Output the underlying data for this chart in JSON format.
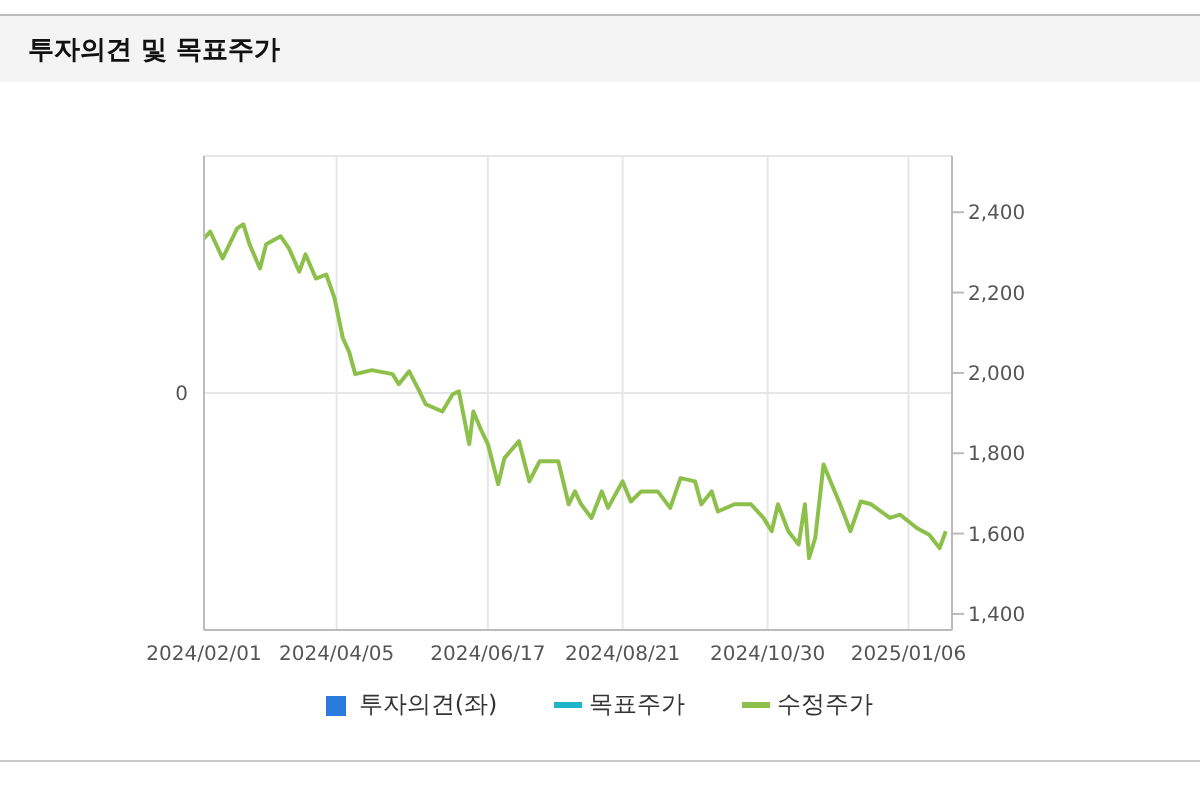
{
  "chart_data": {
    "type": "line",
    "title": "투자의견 및 목표주가",
    "xlim": [
      "2024-02-01",
      "2025-01-27"
    ],
    "xticks": [
      {
        "value": "2024-02-01",
        "label": "2024/02/01"
      },
      {
        "value": "2024-04-05",
        "label": "2024/04/05"
      },
      {
        "value": "2024-06-17",
        "label": "2024/06/17"
      },
      {
        "value": "2024-08-21",
        "label": "2024/08/21"
      },
      {
        "value": "2024-10-30",
        "label": "2024/10/30"
      },
      {
        "value": "2025-01-06",
        "label": "2025/01/06"
      }
    ],
    "annotations": [
      "0"
    ],
    "y2lim": [
      1360,
      2540
    ],
    "y2ticks": [
      {
        "value": 1400,
        "label": "1,400"
      },
      {
        "value": 1600,
        "label": "1,600"
      },
      {
        "value": 1800,
        "label": "1,800"
      },
      {
        "value": 2000,
        "label": "2,000"
      },
      {
        "value": 2200,
        "label": "2,200"
      },
      {
        "value": 2400,
        "label": "2,400"
      }
    ],
    "grid": true,
    "legend": "bottom",
    "series": [
      {
        "name": "투자의견(좌)",
        "type": "bar",
        "color": "#2b7bdc"
      },
      {
        "name": "목표주가",
        "color": "#1fb5c8",
        "axis": "y2"
      },
      {
        "name": "수정주가",
        "color": "#8dc04a",
        "axis": "y2",
        "x": [
          "2024-02-01",
          "2024-02-04",
          "2024-02-10",
          "2024-02-17",
          "2024-02-20",
          "2024-02-23",
          "2024-02-28",
          "2024-03-02",
          "2024-03-09",
          "2024-03-13",
          "2024-03-18",
          "2024-03-21",
          "2024-03-26",
          "2024-03-31",
          "2024-04-04",
          "2024-04-08",
          "2024-04-11",
          "2024-04-14",
          "2024-04-22",
          "2024-05-02",
          "2024-05-05",
          "2024-05-10",
          "2024-05-15",
          "2024-05-18",
          "2024-05-26",
          "2024-05-31",
          "2024-06-03",
          "2024-06-08",
          "2024-06-10",
          "2024-06-14",
          "2024-06-17",
          "2024-06-22",
          "2024-06-25",
          "2024-07-02",
          "2024-07-07",
          "2024-07-12",
          "2024-07-21",
          "2024-07-26",
          "2024-07-29",
          "2024-08-01",
          "2024-08-06",
          "2024-08-11",
          "2024-08-14",
          "2024-08-21",
          "2024-08-25",
          "2024-08-30",
          "2024-09-07",
          "2024-09-13",
          "2024-09-18",
          "2024-09-25",
          "2024-09-28",
          "2024-10-03",
          "2024-10-06",
          "2024-10-14",
          "2024-10-22",
          "2024-10-28",
          "2024-11-01",
          "2024-11-04",
          "2024-11-09",
          "2024-11-14",
          "2024-11-17",
          "2024-11-19",
          "2024-11-22",
          "2024-11-26",
          "2024-11-30",
          "2024-12-04",
          "2024-12-09",
          "2024-12-14",
          "2024-12-19",
          "2024-12-28",
          "2025-01-02",
          "2025-01-10",
          "2025-01-16",
          "2025-01-21",
          "2025-01-24"
        ],
        "values": [
          2335,
          2352,
          2285,
          2360,
          2370,
          2320,
          2260,
          2320,
          2340,
          2310,
          2252,
          2295,
          2235,
          2245,
          2186,
          2087,
          2053,
          1997,
          2007,
          1997,
          1972,
          2004,
          1954,
          1922,
          1904,
          1947,
          1954,
          1823,
          1904,
          1855,
          1823,
          1723,
          1788,
          1830,
          1730,
          1780,
          1780,
          1673,
          1705,
          1673,
          1639,
          1705,
          1664,
          1730,
          1680,
          1705,
          1705,
          1664,
          1738,
          1730,
          1673,
          1705,
          1655,
          1673,
          1673,
          1639,
          1606,
          1673,
          1606,
          1573,
          1673,
          1539,
          1589,
          1772,
          1722,
          1673,
          1606,
          1680,
          1673,
          1639,
          1647,
          1614,
          1597,
          1564,
          1606
        ]
      }
    ]
  }
}
